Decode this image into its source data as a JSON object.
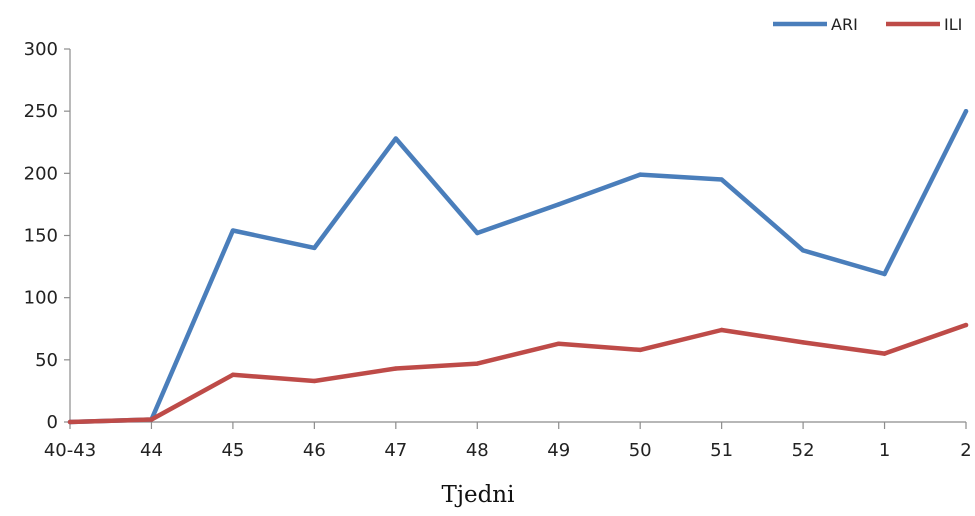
{
  "chart_data": {
    "type": "line",
    "categories": [
      "40-43",
      "44",
      "45",
      "46",
      "47",
      "48",
      "49",
      "50",
      "51",
      "52",
      "1",
      "2"
    ],
    "series": [
      {
        "name": "ARI",
        "color": "#4a7ebb",
        "values": [
          0,
          2,
          154,
          140,
          228,
          152,
          175,
          199,
          195,
          138,
          119,
          250
        ]
      },
      {
        "name": "ILI",
        "color": "#be4b48",
        "values": [
          0,
          2,
          38,
          33,
          43,
          47,
          63,
          58,
          74,
          64,
          55,
          78
        ]
      }
    ],
    "yticks": [
      "0",
      "50",
      "100",
      "150",
      "200",
      "250",
      "300"
    ],
    "ylim": [
      0,
      300
    ],
    "xlabel": "Tjedni",
    "ylabel": "",
    "title": "",
    "grid": false,
    "legend_position": "top-right"
  }
}
